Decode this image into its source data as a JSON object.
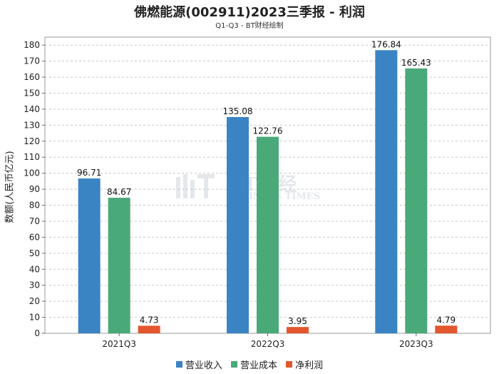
{
  "title": "佛燃能源(002911)2023三季报 - 利润",
  "subtitle": "Q1-Q3 - BT财经绘制",
  "watermark": {
    "line1": "BT财经",
    "line2": "BUSINESS TIMES"
  },
  "chart_data": {
    "type": "bar",
    "categories": [
      "2021Q3",
      "2022Q3",
      "2023Q3"
    ],
    "series": [
      {
        "name": "营业收入",
        "color": "#3a84c4",
        "values": [
          96.71,
          135.08,
          176.84
        ]
      },
      {
        "name": "营业成本",
        "color": "#4aa978",
        "values": [
          84.67,
          122.76,
          165.43
        ]
      },
      {
        "name": "净利润",
        "color": "#e4572e",
        "values": [
          4.73,
          3.95,
          4.79
        ]
      }
    ],
    "data_labels": [
      [
        "96.71",
        "135.08",
        "176.84"
      ],
      [
        "84.67",
        "122.76",
        "165.43"
      ],
      [
        "4.73",
        "3.95",
        "4.79"
      ]
    ],
    "ylabel": "数额(人民币亿元)",
    "xlabel": "",
    "ylim": [
      0,
      185
    ],
    "yticks": [
      0,
      10,
      20,
      30,
      40,
      50,
      60,
      70,
      80,
      90,
      100,
      110,
      120,
      130,
      140,
      150,
      160,
      170,
      180
    ],
    "grid": true,
    "legend": "bottom"
  }
}
